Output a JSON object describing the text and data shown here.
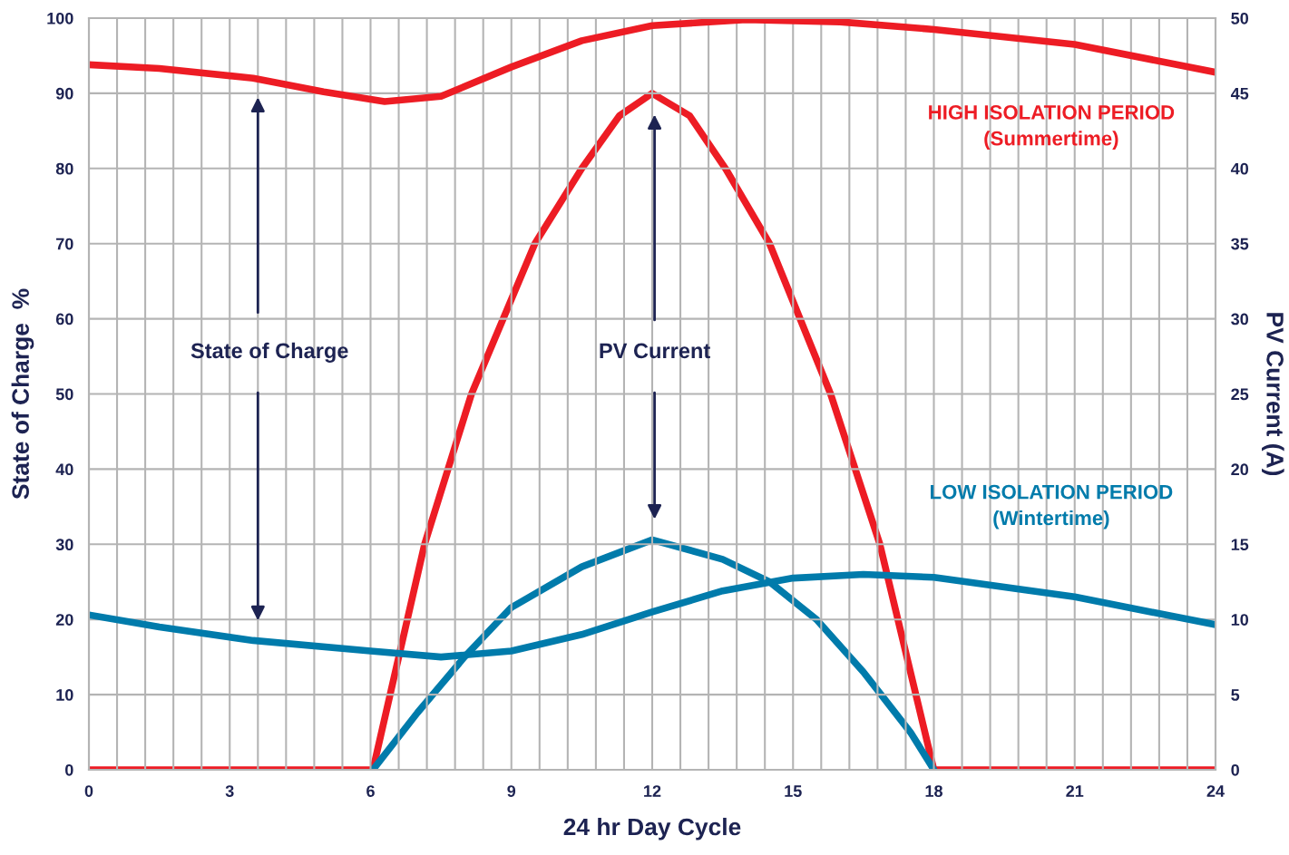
{
  "chart_data": {
    "type": "line",
    "xlabel": "24 hr Day Cycle",
    "ylabel": "State of Charge  %",
    "y2label": "PV Current (A)",
    "xlim": [
      0,
      24
    ],
    "xticks": [
      0,
      3,
      6,
      9,
      12,
      15,
      18,
      21,
      24
    ],
    "ylim": [
      0,
      100
    ],
    "yticks": [
      0,
      10,
      20,
      30,
      40,
      50,
      60,
      70,
      80,
      90,
      100
    ],
    "y2lim": [
      0,
      50
    ],
    "y2ticks": [
      0,
      5,
      10,
      15,
      20,
      25,
      30,
      35,
      40,
      45,
      50
    ],
    "grid": true,
    "line_style": "solid",
    "series": [
      {
        "color": "#ed1c24",
        "x": [
          0,
          1.5,
          3.5,
          5,
          6.3,
          7.5,
          9,
          10.5,
          12,
          14,
          16,
          18,
          21,
          24
        ],
        "values": [
          93.8,
          93.3,
          92,
          90.2,
          88.9,
          89.6,
          93.5,
          97,
          99,
          99.8,
          99.5,
          98.5,
          96.5,
          92.8
        ]
      },
      {
        "color": "#ed1c24",
        "axis": "y2",
        "x": [
          0,
          6.05,
          7.15,
          8.15,
          9.5,
          10.5,
          11.3,
          12,
          12.8,
          13.56,
          14.5,
          15.8,
          16.85,
          18,
          24
        ],
        "values": [
          0,
          0,
          15,
          25,
          35,
          40,
          43.5,
          45,
          43.5,
          40,
          35,
          25,
          15,
          0,
          0
        ]
      },
      {
        "color": "#007bab",
        "x": [
          0,
          1.5,
          3.5,
          6,
          7.5,
          9,
          10.5,
          12,
          13.5,
          15,
          16.5,
          18,
          21,
          24
        ],
        "values": [
          20.6,
          19,
          17.2,
          15.8,
          15,
          15.8,
          18,
          21,
          23.8,
          25.5,
          26,
          25.6,
          23,
          19.3
        ]
      },
      {
        "color": "#007bab",
        "axis": "y2",
        "x": [
          6.05,
          7,
          8,
          9,
          10.5,
          12,
          13.5,
          14.5,
          15.5,
          16.5,
          17.5,
          18
        ],
        "values": [
          0,
          3.8,
          7.5,
          10.8,
          13.5,
          15.3,
          14,
          12.5,
          10,
          6.5,
          2.5,
          0
        ]
      }
    ],
    "annotations": [
      "State of Charge",
      "PV Current",
      "HIGH ISOLATION PERIOD\n(Summertime)",
      "LOW ISOLATION PERIOD\n(Wintertime)"
    ]
  }
}
